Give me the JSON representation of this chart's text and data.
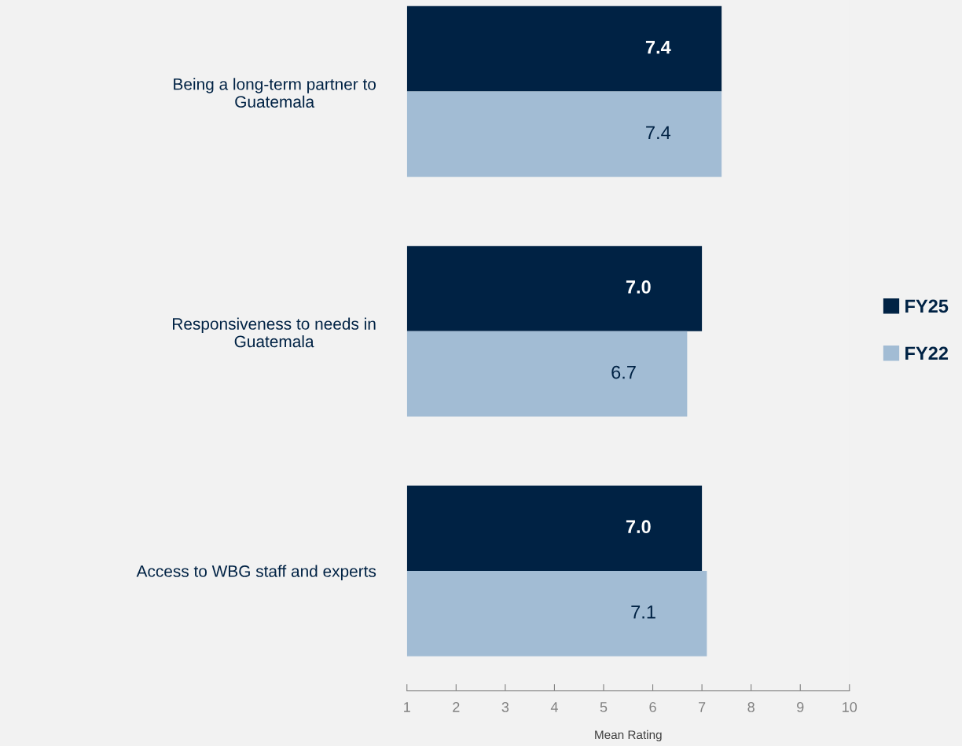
{
  "chart_data": {
    "type": "bar",
    "orientation": "horizontal",
    "xlabel": "Mean Rating",
    "categories": [
      "Being a long-term partner to\nGuatemala",
      "Responsiveness to needs in\nGuatemala",
      "Access to WBG staff and experts"
    ],
    "series": [
      {
        "name": "FY25",
        "color": "#002244",
        "values": [
          7.4,
          7.0,
          7.0
        ],
        "value_labels": [
          "7.4",
          "7.0",
          "7.0"
        ]
      },
      {
        "name": "FY22",
        "color": "#a2bcd4",
        "values": [
          7.4,
          6.7,
          7.1
        ],
        "value_labels": [
          "7.4",
          "6.7",
          "7.1"
        ]
      }
    ],
    "xlim": [
      1,
      10
    ],
    "xticks": [
      1,
      2,
      3,
      4,
      5,
      6,
      7,
      8,
      9,
      10
    ],
    "grid": false,
    "legend": "right"
  }
}
